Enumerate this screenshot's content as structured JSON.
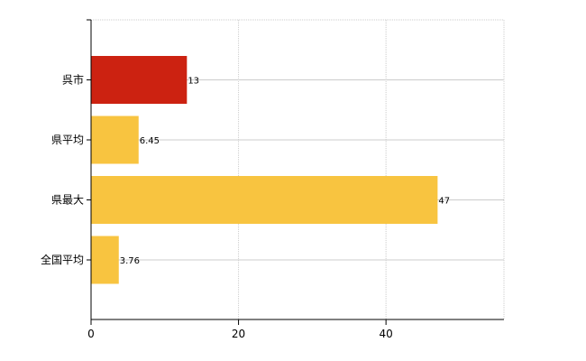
{
  "chart_data": {
    "type": "bar",
    "orientation": "horizontal",
    "categories": [
      "呉市",
      "県平均",
      "県最大",
      "全国平均"
    ],
    "values": [
      13,
      6.45,
      47,
      3.76
    ],
    "data_labels": [
      "13",
      "6.45",
      "47",
      "3.76"
    ],
    "bar_colors": [
      "#cc2211",
      "#f8c440",
      "#f8c440",
      "#f8c440"
    ],
    "xlim": [
      0,
      56
    ],
    "xticks": [
      0,
      20,
      40
    ],
    "xtick_labels": [
      "0",
      "20",
      "40"
    ],
    "grid": true,
    "grid_color": "#cccccc",
    "grid_style": "dotted"
  }
}
